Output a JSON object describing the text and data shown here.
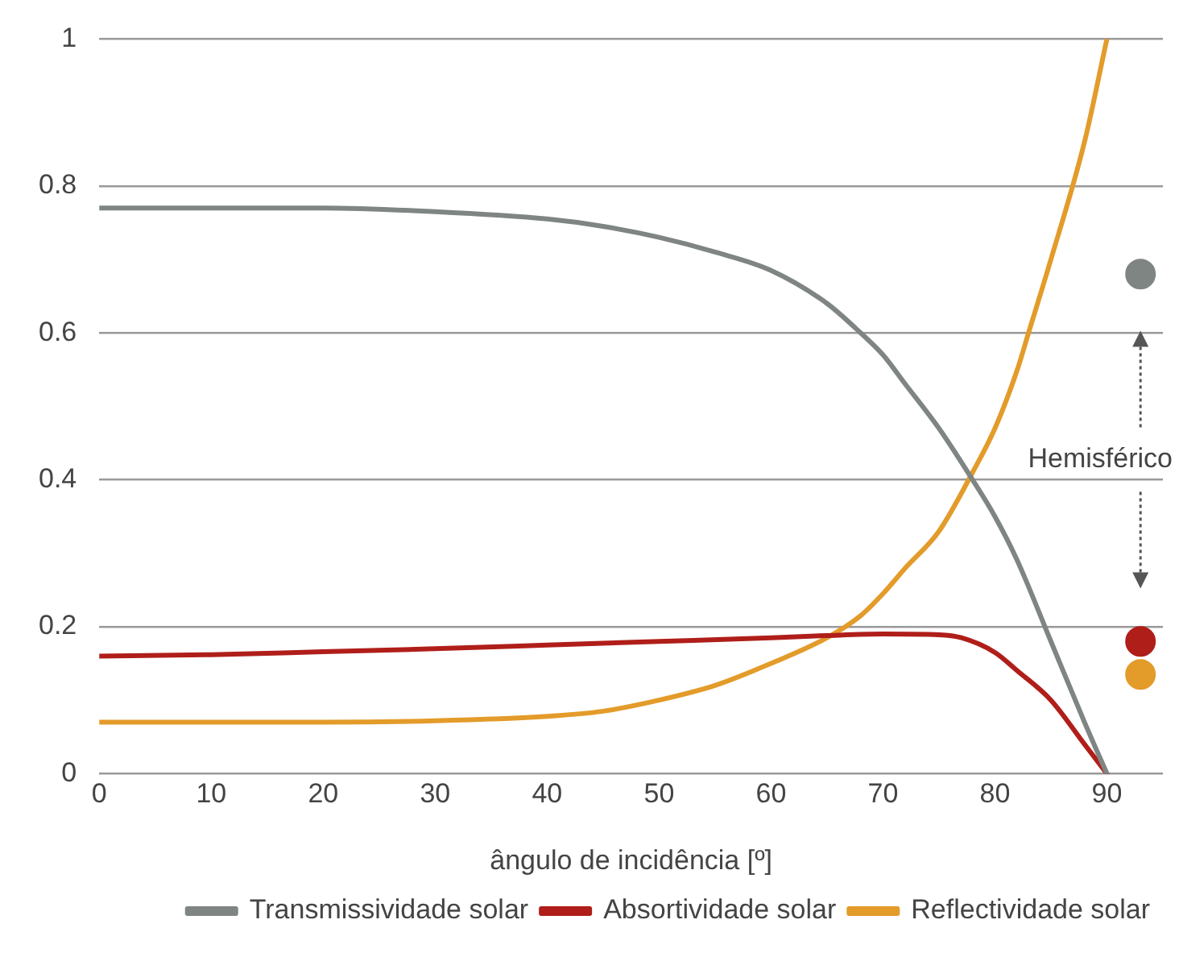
{
  "chart_data": {
    "type": "line",
    "xlabel": "ângulo de incidência [º]",
    "xlim": [
      0,
      95
    ],
    "xticks": [
      0,
      10,
      20,
      30,
      40,
      50,
      60,
      70,
      80,
      90
    ],
    "ylim": [
      0,
      1
    ],
    "yticks": [
      0,
      0.2,
      0.4,
      0.6,
      0.8,
      1
    ],
    "grid": "y",
    "legend": "bottom right",
    "marker": "none",
    "line_style": "solid",
    "annotations": [
      "Hemisférico"
    ],
    "series": [
      {
        "name": "Transmissividade solar",
        "color": "#7f8583",
        "x": [
          0,
          10,
          20,
          30,
          40,
          45,
          50,
          55,
          60,
          65,
          68,
          70,
          72,
          75,
          78,
          80,
          82,
          85,
          88,
          90
        ],
        "values": [
          0.77,
          0.77,
          0.77,
          0.765,
          0.755,
          0.745,
          0.73,
          0.71,
          0.685,
          0.64,
          0.6,
          0.57,
          0.53,
          0.47,
          0.4,
          0.35,
          0.29,
          0.18,
          0.07,
          0
        ]
      },
      {
        "name": "Absortividade solar",
        "color": "#b01e1a",
        "x": [
          0,
          10,
          20,
          30,
          40,
          50,
          60,
          65,
          70,
          75,
          77,
          80,
          82,
          85,
          88,
          90
        ],
        "values": [
          0.16,
          0.162,
          0.166,
          0.17,
          0.175,
          0.18,
          0.185,
          0.188,
          0.19,
          0.189,
          0.185,
          0.165,
          0.14,
          0.1,
          0.04,
          0
        ]
      },
      {
        "name": "Reflectividade solar",
        "color": "#e39b2a",
        "x": [
          0,
          10,
          20,
          30,
          40,
          45,
          50,
          55,
          60,
          65,
          68,
          70,
          72,
          75,
          78,
          80,
          82,
          83,
          85,
          88,
          90
        ],
        "values": [
          0.07,
          0.07,
          0.07,
          0.072,
          0.078,
          0.085,
          0.1,
          0.12,
          0.15,
          0.185,
          0.215,
          0.245,
          0.28,
          0.33,
          0.41,
          0.47,
          0.55,
          0.6,
          0.7,
          0.86,
          1
        ]
      },
      {
        "type": "scatter",
        "color": "#7f8583",
        "marker": "circle",
        "x": [
          93
        ],
        "values": [
          0.68
        ]
      },
      {
        "type": "scatter",
        "color": "#b01e1a",
        "marker": "circle",
        "x": [
          93
        ],
        "values": [
          0.18
        ]
      },
      {
        "type": "scatter",
        "color": "#e39b2a",
        "marker": "circle",
        "x": [
          93
        ],
        "values": [
          0.135
        ]
      }
    ]
  }
}
